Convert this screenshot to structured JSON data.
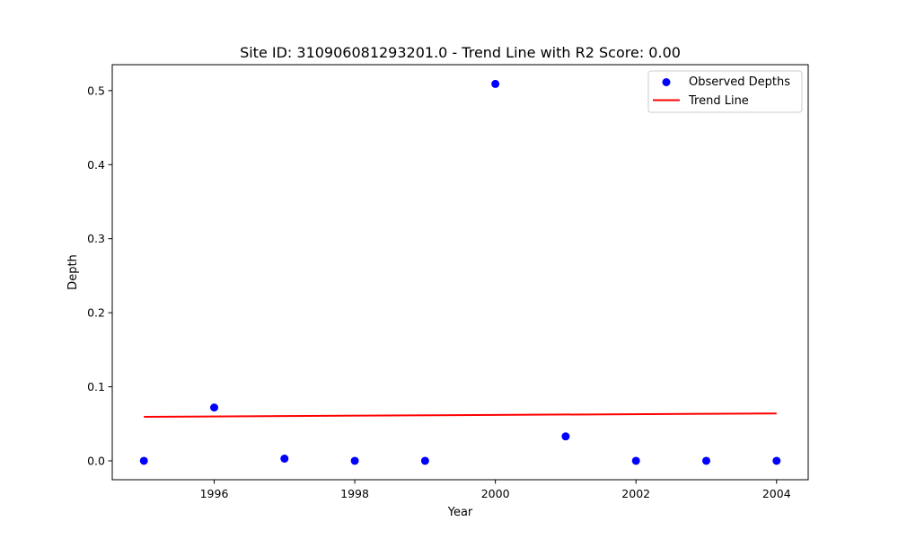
{
  "chart_data": {
    "type": "scatter",
    "title": "Site ID: 310906081293201.0 - Trend Line with R2 Score: 0.00",
    "xlabel": "Year",
    "ylabel": "Depth",
    "xlim": [
      1994.55,
      2004.45
    ],
    "ylim": [
      -0.0255,
      0.535
    ],
    "xticks": [
      1996,
      1998,
      2000,
      2002,
      2004
    ],
    "yticks": [
      0.0,
      0.1,
      0.2,
      0.3,
      0.4,
      0.5
    ],
    "grid": false,
    "legend_position": "top-right",
    "series": [
      {
        "name": "Observed Depths",
        "kind": "scatter",
        "color": "#0000ff",
        "x": [
          1995,
          1996,
          1997,
          1998,
          1999,
          2000,
          2001,
          2002,
          2003,
          2004
        ],
        "y": [
          0.0,
          0.072,
          0.003,
          0.0,
          0.0,
          0.509,
          0.033,
          0.0,
          0.0,
          0.0
        ]
      },
      {
        "name": "Trend Line",
        "kind": "line",
        "color": "#ff0000",
        "x": [
          1995,
          2004
        ],
        "y": [
          0.0595,
          0.064
        ]
      }
    ]
  }
}
